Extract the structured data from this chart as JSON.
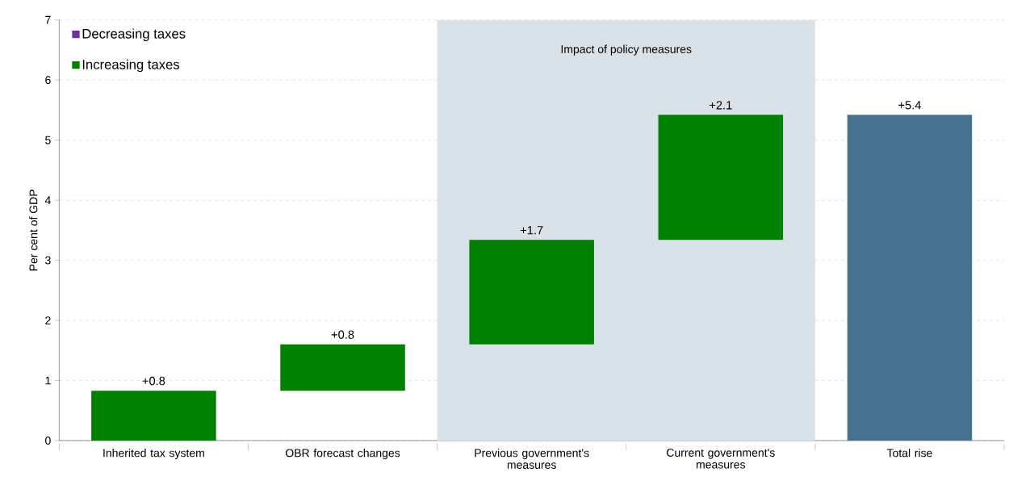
{
  "chart_data": {
    "type": "bar",
    "ylabel": "Per cent of GDP",
    "categories": [
      "Inherited tax system",
      "OBR forecast changes",
      "Previous government's measures",
      "Current government's measures",
      "Total rise"
    ],
    "series": [
      {
        "name": "Decreasing taxes",
        "color": "#7030a0",
        "values": [
          null,
          null,
          null,
          null,
          null
        ]
      },
      {
        "name": "Increasing taxes",
        "color": "#008000",
        "values": [
          0.83,
          0.77,
          1.74,
          2.08,
          null
        ],
        "base": [
          0,
          0.83,
          1.6,
          3.34,
          null
        ],
        "value_labels": [
          "+0.8",
          "+0.8",
          "+1.7",
          "+2.1",
          null
        ]
      },
      {
        "color": "#47718f",
        "values": [
          null,
          null,
          null,
          null,
          5.42
        ],
        "value_labels": [
          null,
          null,
          null,
          null,
          "+5.4"
        ]
      }
    ],
    "ylim": [
      0,
      7
    ],
    "yticks": [
      0,
      1,
      2,
      3,
      4,
      5,
      6,
      7
    ],
    "grid": "y",
    "legend": "top left",
    "bands": [
      {
        "axis": "x",
        "from": "Previous government's measures",
        "to": "Current government's measures",
        "label": "Impact of policy measures",
        "color": "#dae2e9"
      }
    ]
  }
}
